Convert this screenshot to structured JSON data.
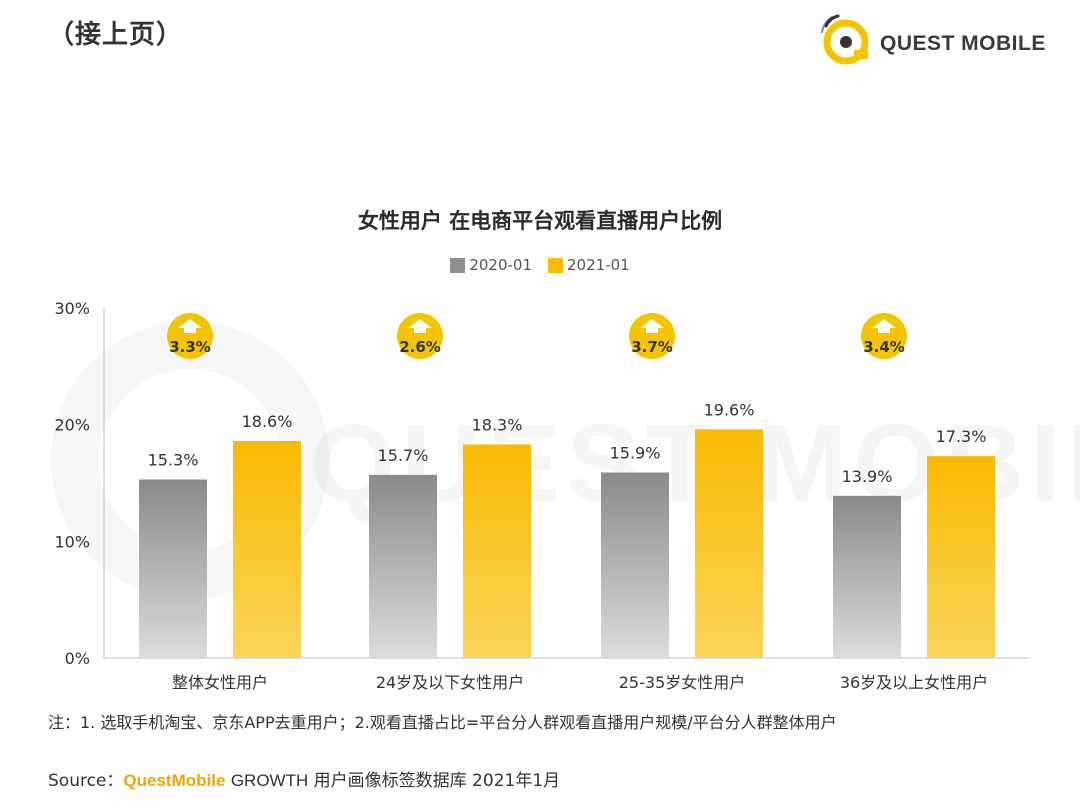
{
  "header": {
    "continued_label": "（接上页）"
  },
  "brand": {
    "name": "QUEST MOBILE",
    "accent_color": "#f5c400",
    "dark_color": "#333333"
  },
  "legend": {
    "series_1": "2020-01",
    "series_2": "2021-01"
  },
  "colors": {
    "series_1": "#8f8f8f",
    "series_2": "#f7bd05",
    "badge": "#f5c400"
  },
  "chart_data": {
    "type": "bar",
    "title": "女性用户 在电商平台观看直播用户比例",
    "categories": [
      "整体女性用户",
      "24岁及以下女性用户",
      "25-35岁女性用户",
      "36岁及以上女性用户"
    ],
    "series": [
      {
        "name": "2020-01",
        "values": [
          15.3,
          15.7,
          15.9,
          13.9
        ]
      },
      {
        "name": "2021-01",
        "values": [
          18.6,
          18.3,
          19.6,
          17.3
        ]
      }
    ],
    "value_labels": [
      [
        "15.3%",
        "15.7%",
        "15.9%",
        "13.9%"
      ],
      [
        "18.6%",
        "18.3%",
        "19.6%",
        "17.3%"
      ]
    ],
    "growth": [
      3.3,
      2.6,
      3.7,
      3.4
    ],
    "growth_labels": [
      "3.3%",
      "2.6%",
      "3.7%",
      "3.4%"
    ],
    "yticks": [
      0,
      10,
      20,
      30
    ],
    "ytick_labels": [
      "0%",
      "10%",
      "20%",
      "30%"
    ],
    "ylim": [
      0,
      30
    ],
    "xlabel": "",
    "ylabel": "",
    "legend_position": "top-center",
    "grid": false
  },
  "footnote": "注：1. 选取手机淘宝、京东APP去重用户；2.观看直播占比=平台分人群观看直播用户规模/平台分人群整体用户",
  "source": {
    "prefix": "Source：",
    "brand": "QuestMobile",
    "growth": "GROWTH",
    "rest": "用户画像标签数据库 2021年1月"
  }
}
